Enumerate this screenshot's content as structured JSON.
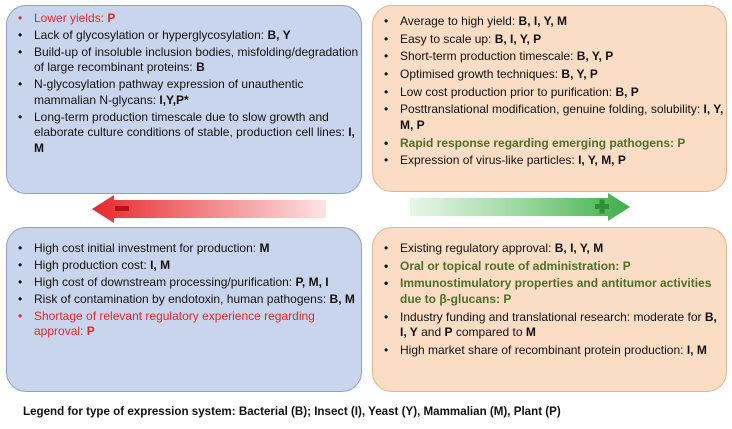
{
  "top_left": {
    "items": [
      {
        "text": "Lower yields: ",
        "key": "P",
        "style": "red"
      },
      {
        "text": "Lack of glycosylation or hyperglycosylation: ",
        "key": "B, Y",
        "style": "normal"
      },
      {
        "text": "Build-up of insoluble inclusion bodies, misfolding/degradation of large recombinant proteins: ",
        "key": "B",
        "style": "normal"
      },
      {
        "text": "N-glycosylation pathway expression of unauthentic mammalian N-glycans: ",
        "key": "I,Y,P*",
        "style": "normal"
      },
      {
        "text": "Long-term production timescale due to slow growth and elaborate culture conditions of stable, production cell lines: ",
        "key": "I, M",
        "style": "normal"
      }
    ]
  },
  "top_right": {
    "items": [
      {
        "text": "Average to high yield: ",
        "key": "B, I, Y, M",
        "style": "normal"
      },
      {
        "text": "Easy to scale up: ",
        "key": "B, I, Y, P",
        "style": "normal"
      },
      {
        "text": "Short-term production timescale: ",
        "key": "B, Y, P",
        "style": "normal"
      },
      {
        "text": "Optimised growth techniques: ",
        "key": "B, Y, P",
        "style": "normal"
      },
      {
        "text": "Low cost production prior to purification: ",
        "key": "B, P",
        "style": "normal"
      },
      {
        "text": "Posttranslational modification, genuine folding, solubility: ",
        "key": "I, Y, M, P",
        "style": "normal"
      },
      {
        "text": "Rapid response regarding emerging pathogens: ",
        "key": "P",
        "style": "green"
      },
      {
        "text": "Expression of virus-like particles: ",
        "key": "I, Y, M, P",
        "style": "normal"
      }
    ]
  },
  "bottom_left": {
    "items": [
      {
        "text": "High cost initial investment for production: ",
        "key": "M",
        "style": "normal"
      },
      {
        "text": "High production cost: ",
        "key": "I, M",
        "style": "normal"
      },
      {
        "text": "High cost of downstream processing/purification: ",
        "key": "P, M, I",
        "style": "normal"
      },
      {
        "text": " Risk of contamination by endotoxin, human pathogens: ",
        "key": "B, M",
        "style": "normal"
      },
      {
        "text": "Shortage of relevant regulatory experience regarding approval: ",
        "key": "P",
        "style": "red"
      }
    ]
  },
  "bottom_right": {
    "items": [
      {
        "text": "Existing regulatory approval: ",
        "key": "B, I, Y, M",
        "style": "normal"
      },
      {
        "text": "Oral or topical route of administration: ",
        "key": "P",
        "style": "green"
      },
      {
        "text": "Immunostimulatory properties and antitumor activities due to β-glucans: ",
        "key": "P",
        "style": "green"
      },
      {
        "text": "Industry funding and translational research: moderate for ",
        "key": "B, I, Y",
        "mid": " and ",
        "key2": "P",
        "mid2": " compared to ",
        "key3": "M",
        "style": "normal"
      },
      {
        "text": "High market share of recombinant protein production: ",
        "key": "I, M",
        "style": "normal"
      }
    ]
  },
  "arrows": {
    "left_symbol": "minus",
    "right_symbol": "plus",
    "left_color": "#e8262a",
    "right_color": "#3fae49"
  },
  "legend": "Legend for type of expression system: Bacterial (B); Insect (I), Yeast (Y), Mammalian (M), Plant (P)"
}
